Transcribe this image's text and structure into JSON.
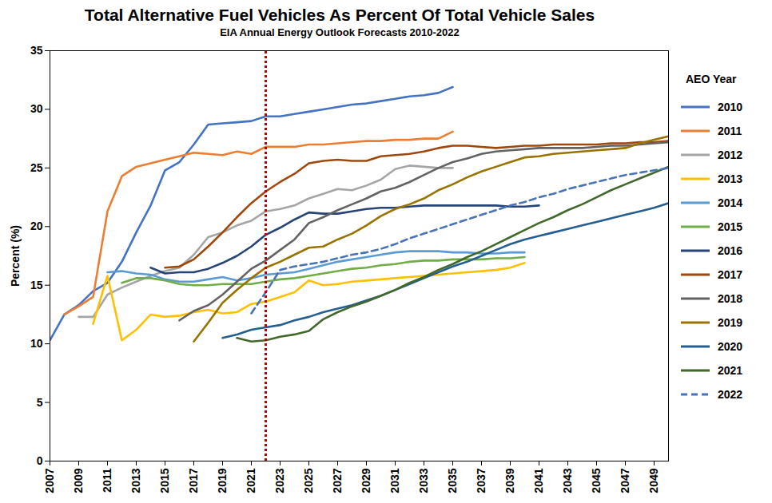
{
  "chart_data": {
    "type": "line",
    "title": "Total Alternative Fuel Vehicles As Percent Of Total Vehicle Sales",
    "subtitle": "EIA Annual Energy Outlook Forecasts 2010-2022",
    "y_label": "Percent (%)",
    "legend_title": "AEO Year",
    "legend": "right",
    "grid": false,
    "xlim": [
      2007,
      2050
    ],
    "xticks": [
      2007,
      2009,
      2011,
      2013,
      2015,
      2017,
      2019,
      2021,
      2023,
      2025,
      2027,
      2029,
      2031,
      2033,
      2035,
      2037,
      2039,
      2041,
      2043,
      2045,
      2047,
      2049
    ],
    "ylim": [
      0,
      35
    ],
    "yticks": [
      0,
      5,
      10,
      15,
      20,
      25,
      30,
      35
    ],
    "reference_line": {
      "x": 2022,
      "color": "#c00000",
      "line_style": "dotted"
    },
    "x": [
      2007,
      2008,
      2009,
      2010,
      2011,
      2012,
      2013,
      2014,
      2015,
      2016,
      2017,
      2018,
      2019,
      2020,
      2021,
      2022,
      2023,
      2024,
      2025,
      2026,
      2027,
      2028,
      2029,
      2030,
      2031,
      2032,
      2033,
      2034,
      2035,
      2036,
      2037,
      2038,
      2039,
      2040,
      2041,
      2042,
      2043,
      2044,
      2045,
      2046,
      2047,
      2048,
      2049,
      2050
    ],
    "series": [
      {
        "name": "2010",
        "color": "#4472c4",
        "line_style": "solid",
        "values": [
          10.3,
          12.5,
          13.3,
          14.5,
          15.2,
          17.0,
          19.5,
          21.8,
          24.8,
          25.5,
          27.0,
          28.7,
          28.8,
          28.9,
          29.0,
          29.4,
          29.4,
          29.6,
          29.8,
          30.0,
          30.2,
          30.4,
          30.5,
          30.7,
          30.9,
          31.1,
          31.2,
          31.4,
          31.9,
          null,
          null,
          null,
          null,
          null,
          null,
          null,
          null,
          null,
          null,
          null,
          null,
          null,
          null,
          null
        ]
      },
      {
        "name": "2011",
        "color": "#ed7d31",
        "line_style": "solid",
        "values": [
          null,
          12.5,
          13.2,
          14.0,
          21.3,
          24.3,
          25.1,
          25.4,
          25.7,
          26.0,
          26.3,
          26.2,
          26.1,
          26.4,
          26.2,
          26.8,
          26.8,
          26.8,
          27.0,
          27.0,
          27.1,
          27.2,
          27.3,
          27.3,
          27.4,
          27.4,
          27.5,
          27.5,
          28.1,
          null,
          null,
          null,
          null,
          null,
          null,
          null,
          null,
          null,
          null,
          null,
          null,
          null,
          null,
          null
        ]
      },
      {
        "name": "2012",
        "color": "#a5a5a5",
        "line_style": "solid",
        "values": [
          null,
          null,
          12.3,
          12.3,
          14.2,
          14.8,
          15.3,
          15.8,
          16.2,
          16.5,
          17.6,
          19.1,
          19.5,
          20.1,
          20.5,
          21.3,
          21.5,
          21.8,
          22.4,
          22.8,
          23.2,
          23.1,
          23.5,
          24.0,
          24.9,
          25.2,
          25.1,
          25.0,
          25.0,
          null,
          null,
          null,
          null,
          null,
          null,
          null,
          null,
          null,
          null,
          null,
          null,
          null,
          null,
          null
        ]
      },
      {
        "name": "2013",
        "color": "#ffc000",
        "line_style": "solid",
        "values": [
          null,
          null,
          null,
          11.7,
          15.8,
          10.3,
          11.2,
          12.5,
          12.3,
          12.4,
          12.7,
          12.9,
          12.6,
          12.7,
          13.4,
          13.6,
          14.0,
          14.4,
          15.4,
          15.0,
          15.1,
          15.3,
          15.4,
          15.5,
          15.6,
          15.7,
          15.8,
          15.9,
          16.0,
          16.1,
          16.2,
          16.3,
          16.5,
          16.9,
          null,
          null,
          null,
          null,
          null,
          null,
          null,
          null,
          null,
          null
        ]
      },
      {
        "name": "2014",
        "color": "#5b9bd5",
        "line_style": "solid",
        "values": [
          null,
          null,
          null,
          null,
          16.1,
          16.2,
          16.0,
          15.9,
          15.5,
          15.3,
          15.3,
          15.5,
          15.7,
          15.4,
          15.6,
          15.9,
          16.0,
          16.1,
          16.4,
          16.7,
          17.0,
          17.2,
          17.4,
          17.6,
          17.8,
          17.9,
          17.9,
          17.9,
          17.8,
          17.8,
          17.7,
          17.7,
          17.8,
          17.8,
          null,
          null,
          null,
          null,
          null,
          null,
          null,
          null,
          null,
          null
        ]
      },
      {
        "name": "2015",
        "color": "#70ad47",
        "line_style": "solid",
        "values": [
          null,
          null,
          null,
          null,
          null,
          15.2,
          15.6,
          15.6,
          15.4,
          15.1,
          15.0,
          15.0,
          15.1,
          15.1,
          15.1,
          15.3,
          15.5,
          15.6,
          15.8,
          16.0,
          16.2,
          16.4,
          16.5,
          16.7,
          16.8,
          17.0,
          17.1,
          17.1,
          17.2,
          17.2,
          17.2,
          17.3,
          17.3,
          17.4,
          null,
          null,
          null,
          null,
          null,
          null,
          null,
          null,
          null,
          null
        ]
      },
      {
        "name": "2016",
        "color": "#264478",
        "line_style": "solid",
        "values": [
          null,
          null,
          null,
          null,
          null,
          null,
          null,
          16.5,
          16.0,
          16.1,
          16.1,
          16.4,
          16.9,
          17.5,
          18.3,
          19.3,
          19.9,
          20.6,
          21.2,
          21.1,
          21.1,
          21.3,
          21.5,
          21.6,
          21.6,
          21.7,
          21.8,
          21.8,
          21.8,
          21.8,
          21.8,
          21.8,
          21.7,
          21.7,
          21.8,
          null,
          null,
          null,
          null,
          null,
          null,
          null,
          null,
          null
        ]
      },
      {
        "name": "2017",
        "color": "#9e480e",
        "line_style": "solid",
        "values": [
          null,
          null,
          null,
          null,
          null,
          null,
          null,
          null,
          16.5,
          16.6,
          17.2,
          18.3,
          19.5,
          20.8,
          22.0,
          23.0,
          23.8,
          24.5,
          25.4,
          25.6,
          25.7,
          25.6,
          25.6,
          26.0,
          26.1,
          26.2,
          26.4,
          26.7,
          26.9,
          26.9,
          26.8,
          26.7,
          26.8,
          26.9,
          26.9,
          27.0,
          27.0,
          27.0,
          27.0,
          27.1,
          27.1,
          27.2,
          27.2,
          27.3
        ]
      },
      {
        "name": "2018",
        "color": "#636363",
        "line_style": "solid",
        "values": [
          null,
          null,
          null,
          null,
          null,
          null,
          null,
          null,
          null,
          12.0,
          12.8,
          13.3,
          14.2,
          15.3,
          16.4,
          17.1,
          18.0,
          18.9,
          20.3,
          20.8,
          21.4,
          21.9,
          22.4,
          23.0,
          23.3,
          23.8,
          24.4,
          25.0,
          25.5,
          25.8,
          26.2,
          26.4,
          26.5,
          26.6,
          26.7,
          26.7,
          26.7,
          26.7,
          26.8,
          26.9,
          26.9,
          27.0,
          27.1,
          27.2
        ]
      },
      {
        "name": "2019",
        "color": "#997300",
        "line_style": "solid",
        "values": [
          null,
          null,
          null,
          null,
          null,
          null,
          null,
          null,
          null,
          null,
          10.2,
          11.8,
          13.5,
          14.6,
          15.6,
          16.5,
          17.0,
          17.6,
          18.2,
          18.3,
          18.9,
          19.4,
          20.1,
          20.9,
          21.5,
          21.9,
          22.4,
          23.1,
          23.6,
          24.2,
          24.7,
          25.1,
          25.5,
          25.9,
          26.0,
          26.2,
          26.3,
          26.4,
          26.5,
          26.6,
          26.7,
          27.1,
          27.4,
          27.7
        ]
      },
      {
        "name": "2020",
        "color": "#255e91",
        "line_style": "solid",
        "values": [
          null,
          null,
          null,
          null,
          null,
          null,
          null,
          null,
          null,
          null,
          null,
          null,
          10.5,
          10.8,
          11.2,
          11.4,
          11.6,
          12.0,
          12.3,
          12.7,
          13.0,
          13.3,
          13.7,
          14.1,
          14.6,
          15.1,
          15.6,
          16.1,
          16.6,
          17.0,
          17.5,
          18.0,
          18.5,
          18.9,
          19.2,
          19.5,
          19.8,
          20.1,
          20.4,
          20.7,
          21.0,
          21.3,
          21.6,
          22.0
        ]
      },
      {
        "name": "2021",
        "color": "#43682b",
        "line_style": "solid",
        "values": [
          null,
          null,
          null,
          null,
          null,
          null,
          null,
          null,
          null,
          null,
          null,
          null,
          null,
          10.5,
          10.2,
          10.3,
          10.6,
          10.8,
          11.1,
          12.1,
          12.7,
          13.2,
          13.6,
          14.1,
          14.6,
          15.2,
          15.7,
          16.3,
          16.8,
          17.4,
          17.9,
          18.5,
          19.1,
          19.7,
          20.3,
          20.8,
          21.4,
          21.9,
          22.5,
          23.1,
          23.6,
          24.1,
          24.6,
          25.1
        ]
      },
      {
        "name": "2022",
        "color": "#4a72b8",
        "line_style": "dashed",
        "values": [
          null,
          null,
          null,
          null,
          null,
          null,
          null,
          null,
          null,
          null,
          null,
          null,
          null,
          null,
          12.6,
          14.4,
          16.3,
          16.6,
          16.8,
          17.0,
          17.3,
          17.6,
          17.8,
          18.1,
          18.5,
          19.0,
          19.4,
          19.8,
          20.2,
          20.6,
          21.0,
          21.4,
          21.8,
          22.1,
          22.5,
          22.8,
          23.2,
          23.5,
          23.8,
          24.1,
          24.4,
          24.6,
          24.8,
          25.0
        ]
      }
    ]
  }
}
